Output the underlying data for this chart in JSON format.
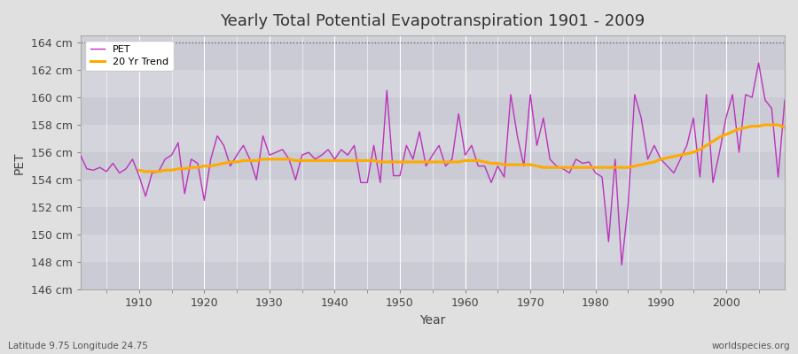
{
  "title": "Yearly Total Potential Evapotranspiration 1901 - 2009",
  "xlabel": "Year",
  "ylabel": "PET",
  "subtitle_left": "Latitude 9.75 Longitude 24.75",
  "subtitle_right": "worldspecies.org",
  "ylim": [
    146,
    164.5
  ],
  "yticks": [
    146,
    148,
    150,
    152,
    154,
    156,
    158,
    160,
    162,
    164
  ],
  "ytick_labels": [
    "146 cm",
    "148 cm",
    "150 cm",
    "152 cm",
    "154 cm",
    "156 cm",
    "158 cm",
    "160 cm",
    "162 cm",
    "164 cm"
  ],
  "xticks": [
    1910,
    1920,
    1930,
    1940,
    1950,
    1960,
    1970,
    1980,
    1990,
    2000
  ],
  "pet_color": "#bb33bb",
  "trend_color": "#ffaa00",
  "bg_color": "#e0e0e0",
  "plot_bg_color": "#d0d0d8",
  "legend_labels": [
    "PET",
    "20 Yr Trend"
  ],
  "years": [
    1901,
    1902,
    1903,
    1904,
    1905,
    1906,
    1907,
    1908,
    1909,
    1910,
    1911,
    1912,
    1913,
    1914,
    1915,
    1916,
    1917,
    1918,
    1919,
    1920,
    1921,
    1922,
    1923,
    1924,
    1925,
    1926,
    1927,
    1928,
    1929,
    1930,
    1931,
    1932,
    1933,
    1934,
    1935,
    1936,
    1937,
    1938,
    1939,
    1940,
    1941,
    1942,
    1943,
    1944,
    1945,
    1946,
    1947,
    1948,
    1949,
    1950,
    1951,
    1952,
    1953,
    1954,
    1955,
    1956,
    1957,
    1958,
    1959,
    1960,
    1961,
    1962,
    1963,
    1964,
    1965,
    1966,
    1967,
    1968,
    1969,
    1970,
    1971,
    1972,
    1973,
    1974,
    1975,
    1976,
    1977,
    1978,
    1979,
    1980,
    1981,
    1982,
    1983,
    1984,
    1985,
    1986,
    1987,
    1988,
    1989,
    1990,
    1991,
    1992,
    1993,
    1994,
    1995,
    1996,
    1997,
    1998,
    1999,
    2000,
    2001,
    2002,
    2003,
    2004,
    2005,
    2006,
    2007,
    2008,
    2009
  ],
  "pet_values": [
    155.8,
    154.8,
    154.7,
    154.9,
    154.6,
    155.2,
    154.5,
    154.8,
    155.5,
    154.3,
    152.8,
    154.5,
    154.6,
    155.5,
    155.8,
    156.7,
    153.0,
    155.5,
    155.2,
    152.5,
    155.5,
    157.2,
    156.5,
    155.0,
    155.8,
    156.5,
    155.5,
    154.0,
    157.2,
    155.8,
    156.0,
    156.2,
    155.5,
    154.0,
    155.8,
    156.0,
    155.5,
    155.8,
    156.2,
    155.5,
    156.2,
    155.8,
    156.5,
    153.8,
    153.8,
    156.5,
    153.8,
    160.5,
    154.3,
    154.3,
    156.5,
    155.5,
    157.5,
    155.0,
    155.8,
    156.5,
    155.0,
    155.5,
    158.8,
    155.8,
    156.5,
    155.0,
    155.0,
    153.8,
    155.0,
    154.2,
    160.2,
    157.2,
    155.0,
    160.2,
    156.5,
    158.5,
    155.5,
    155.0,
    154.8,
    154.5,
    155.5,
    155.2,
    155.3,
    154.5,
    154.2,
    149.5,
    155.5,
    147.8,
    152.2,
    160.2,
    158.5,
    155.5,
    156.5,
    155.5,
    155.0,
    154.5,
    155.5,
    156.5,
    158.5,
    154.2,
    160.2,
    153.8,
    156.0,
    158.5,
    160.2,
    156.0,
    160.2,
    160.0,
    162.5,
    159.8,
    159.2,
    154.2,
    159.8
  ],
  "trend_values": [
    null,
    null,
    null,
    null,
    null,
    null,
    null,
    null,
    null,
    154.7,
    154.6,
    154.6,
    154.6,
    154.7,
    154.7,
    154.8,
    154.8,
    154.9,
    154.9,
    155.0,
    155.0,
    155.1,
    155.2,
    155.3,
    155.3,
    155.4,
    155.4,
    155.4,
    155.5,
    155.5,
    155.5,
    155.5,
    155.5,
    155.4,
    155.4,
    155.4,
    155.4,
    155.4,
    155.4,
    155.4,
    155.4,
    155.4,
    155.4,
    155.4,
    155.4,
    155.4,
    155.3,
    155.3,
    155.3,
    155.3,
    155.3,
    155.3,
    155.3,
    155.3,
    155.3,
    155.3,
    155.3,
    155.3,
    155.3,
    155.4,
    155.4,
    155.4,
    155.3,
    155.2,
    155.2,
    155.1,
    155.1,
    155.1,
    155.1,
    155.1,
    155.0,
    154.9,
    154.9,
    154.9,
    154.9,
    154.9,
    154.9,
    154.9,
    154.9,
    154.9,
    154.9,
    154.9,
    154.9,
    154.9,
    154.9,
    155.0,
    155.1,
    155.2,
    155.3,
    155.5,
    155.6,
    155.7,
    155.8,
    155.9,
    156.0,
    156.2,
    156.5,
    156.8,
    157.1,
    157.3,
    157.5,
    157.7,
    157.8,
    157.9,
    157.9,
    158.0,
    158.0,
    158.0,
    157.8
  ]
}
